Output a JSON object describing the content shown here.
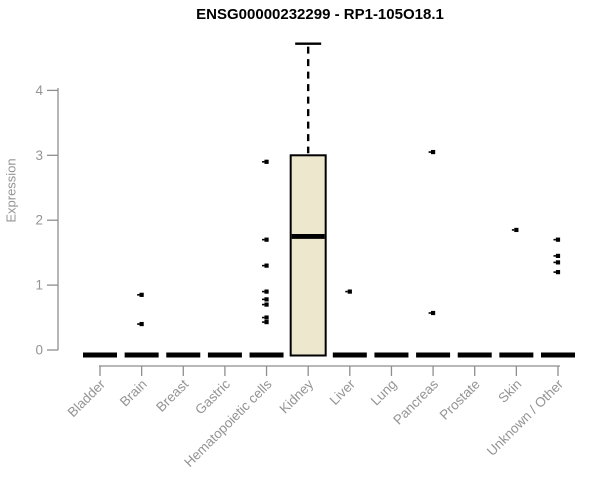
{
  "title": "ENSG00000232299 - RP1-105O18.1",
  "chart_data": {
    "type": "boxplot",
    "title": "ENSG00000232299 - RP1-105O18.1",
    "xlabel": "",
    "ylabel": "Expression",
    "ylim": [
      0,
      4.8
    ],
    "yticks": [
      0,
      1,
      2,
      3,
      4
    ],
    "grid": false,
    "legend": "none",
    "categories": [
      "Bladder",
      "Brain",
      "Breast",
      "Gastric",
      "Hematopoietic cells",
      "Kidney",
      "Liver",
      "Lung",
      "Pancreas",
      "Prostate",
      "Skin",
      "Unknown / Other"
    ],
    "boxes": [
      {
        "category": "Bladder",
        "q1": 0,
        "median": 0,
        "q3": 0,
        "whisker_low": 0,
        "whisker_high": 0,
        "outliers": []
      },
      {
        "category": "Brain",
        "q1": 0,
        "median": 0,
        "q3": 0,
        "whisker_low": 0,
        "whisker_high": 0,
        "outliers": [
          0.85,
          0.4
        ]
      },
      {
        "category": "Breast",
        "q1": 0,
        "median": 0,
        "q3": 0,
        "whisker_low": 0,
        "whisker_high": 0,
        "outliers": []
      },
      {
        "category": "Gastric",
        "q1": 0,
        "median": 0,
        "q3": 0,
        "whisker_low": 0,
        "whisker_high": 0,
        "outliers": []
      },
      {
        "category": "Hematopoietic cells",
        "q1": 0,
        "median": 0,
        "q3": 0,
        "whisker_low": 0,
        "whisker_high": 0,
        "outliers": [
          2.9,
          1.7,
          1.3,
          0.9,
          0.78,
          0.7,
          0.5,
          0.43
        ]
      },
      {
        "category": "Kidney",
        "q1": 0,
        "median": 1.75,
        "q3": 3.0,
        "whisker_low": 0,
        "whisker_high": 4.72,
        "outliers": []
      },
      {
        "category": "Liver",
        "q1": 0,
        "median": 0,
        "q3": 0,
        "whisker_low": 0,
        "whisker_high": 0,
        "outliers": [
          0.9
        ]
      },
      {
        "category": "Lung",
        "q1": 0,
        "median": 0,
        "q3": 0,
        "whisker_low": 0,
        "whisker_high": 0,
        "outliers": []
      },
      {
        "category": "Pancreas",
        "q1": 0,
        "median": 0,
        "q3": 0,
        "whisker_low": 0,
        "whisker_high": 0,
        "outliers": [
          3.05,
          0.57
        ]
      },
      {
        "category": "Prostate",
        "q1": 0,
        "median": 0,
        "q3": 0,
        "whisker_low": 0,
        "whisker_high": 0,
        "outliers": []
      },
      {
        "category": "Skin",
        "q1": 0,
        "median": 0,
        "q3": 0,
        "whisker_low": 0,
        "whisker_high": 0,
        "outliers": [
          1.85
        ]
      },
      {
        "category": "Unknown / Other",
        "q1": 0,
        "median": 0,
        "q3": 0,
        "whisker_low": 0,
        "whisker_high": 0,
        "outliers": [
          1.7,
          1.45,
          1.35,
          1.2
        ]
      }
    ],
    "colors": {
      "box_fill": "#ECE7CD",
      "box_border": "#000000",
      "whisker": "#000000",
      "outlier": "#000000",
      "axis": "#8e8e8e",
      "tick_text": "#949494",
      "title_text": "#000000",
      "background": "#ffffff"
    }
  }
}
